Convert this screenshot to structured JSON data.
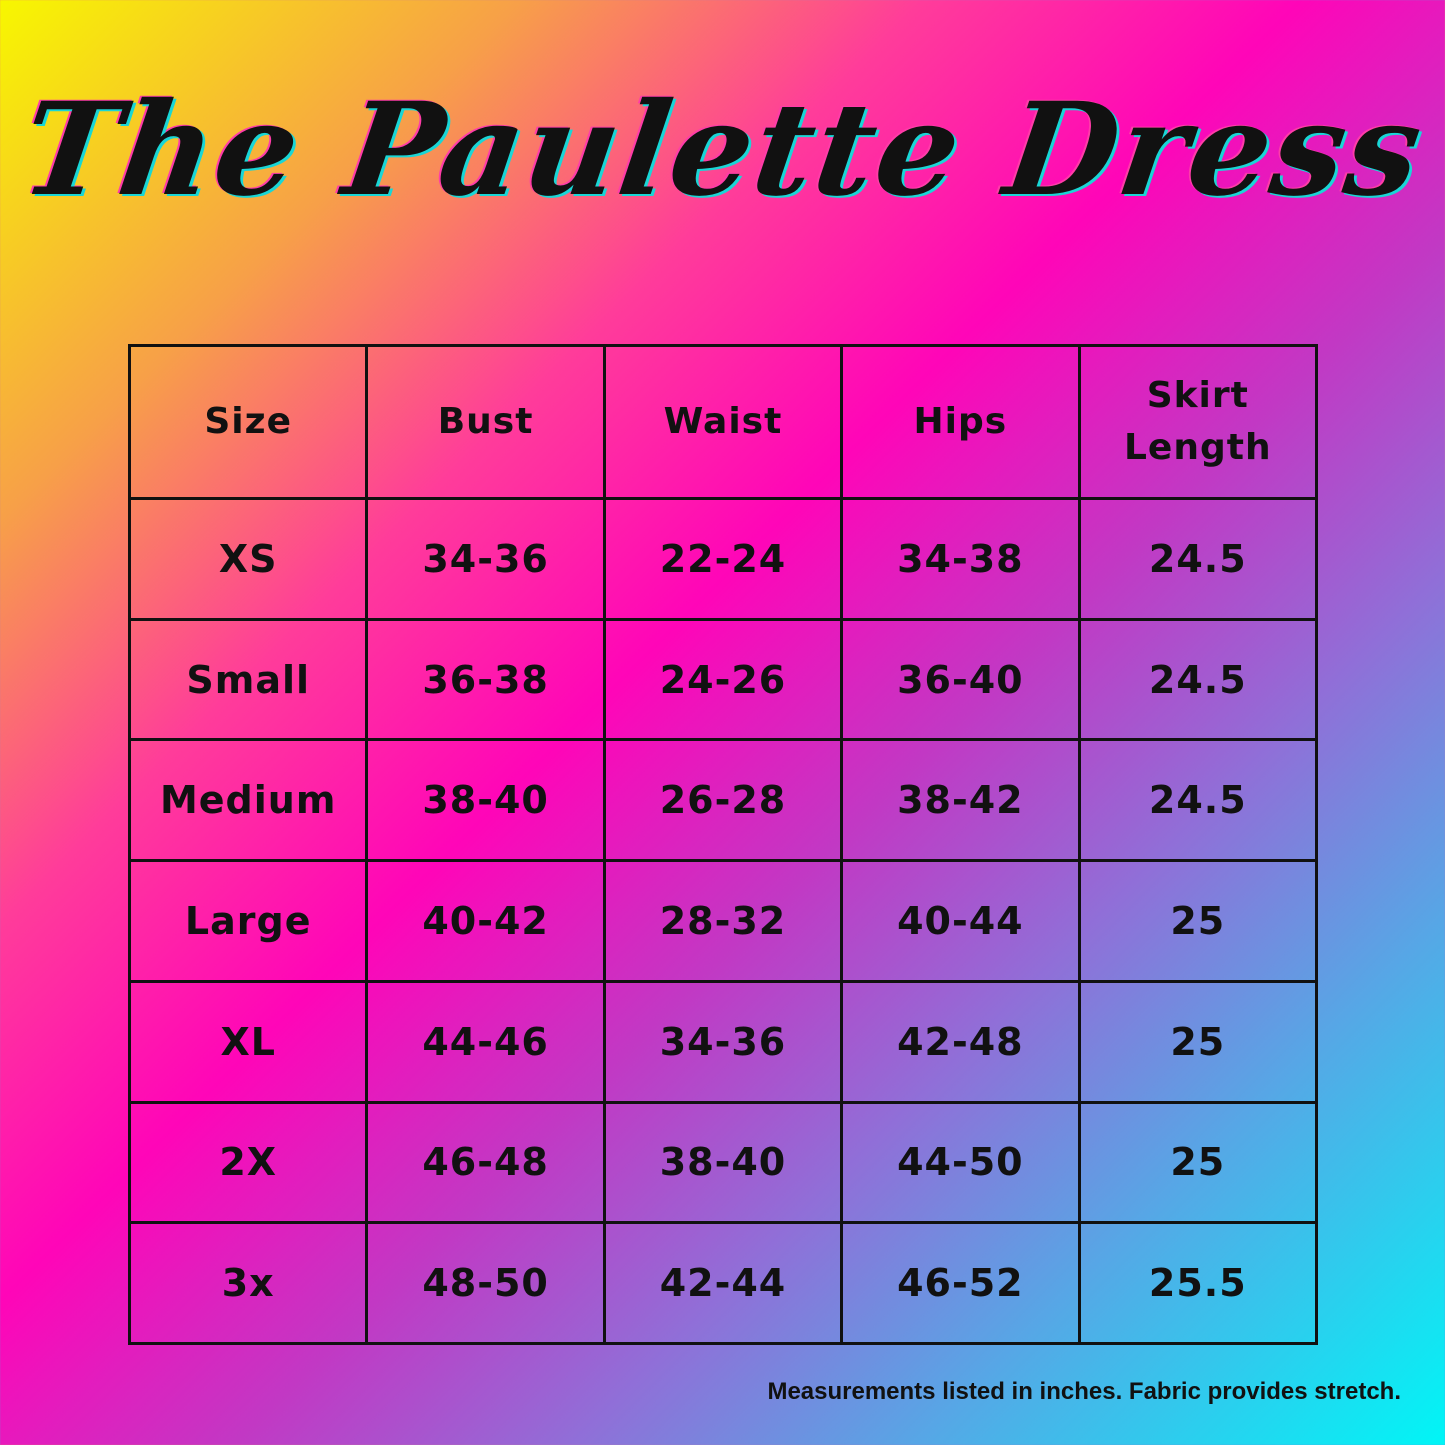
{
  "title": "The Paulette Dress",
  "table": {
    "headers": [
      "Size",
      "Bust",
      "Waist",
      "Hips",
      "Skirt Length"
    ],
    "rows": [
      [
        "XS",
        "34-36",
        "22-24",
        "34-38",
        "24.5"
      ],
      [
        "Small",
        "36-38",
        "24-26",
        "36-40",
        "24.5"
      ],
      [
        "Medium",
        "38-40",
        "26-28",
        "38-42",
        "24.5"
      ],
      [
        "Large",
        "40-42",
        "28-32",
        "40-44",
        "25"
      ],
      [
        "XL",
        "44-46",
        "34-36",
        "42-48",
        "25"
      ],
      [
        "2X",
        "46-48",
        "38-40",
        "44-50",
        "25"
      ],
      [
        "3x",
        "48-50",
        "42-44",
        "46-52",
        "25.5"
      ]
    ]
  },
  "footnote": "Measurements listed in inches. Fabric provides stretch."
}
